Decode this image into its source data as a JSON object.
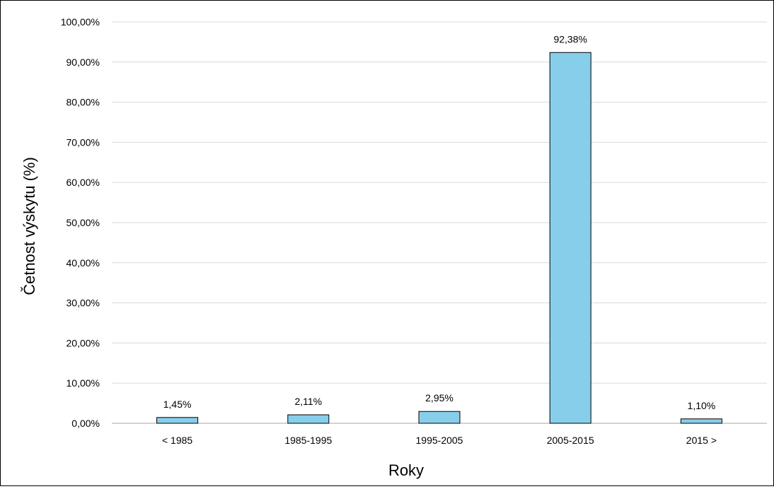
{
  "chart_data": {
    "type": "bar",
    "categories": [
      "< 1985",
      "1985-1995",
      "1995-2005",
      "2005-2015",
      "2015 >"
    ],
    "values": [
      1.45,
      2.11,
      2.95,
      92.38,
      1.1
    ],
    "data_labels": [
      "1,45%",
      "2,11%",
      "2,95%",
      "92,38%",
      "1,10%"
    ],
    "xlabel": "Roky",
    "ylabel": "Četnost výskytu (%)",
    "ylim": [
      0,
      100
    ],
    "y_ticks": [
      0,
      10,
      20,
      30,
      40,
      50,
      60,
      70,
      80,
      90,
      100
    ],
    "y_tick_labels": [
      "0,00%",
      "10,00%",
      "20,00%",
      "30,00%",
      "40,00%",
      "50,00%",
      "60,00%",
      "70,00%",
      "80,00%",
      "90,00%",
      "100,00%"
    ],
    "grid": true,
    "legend": "none",
    "bar_color": "#87CEEB",
    "bar_edge_color": "#000000"
  }
}
